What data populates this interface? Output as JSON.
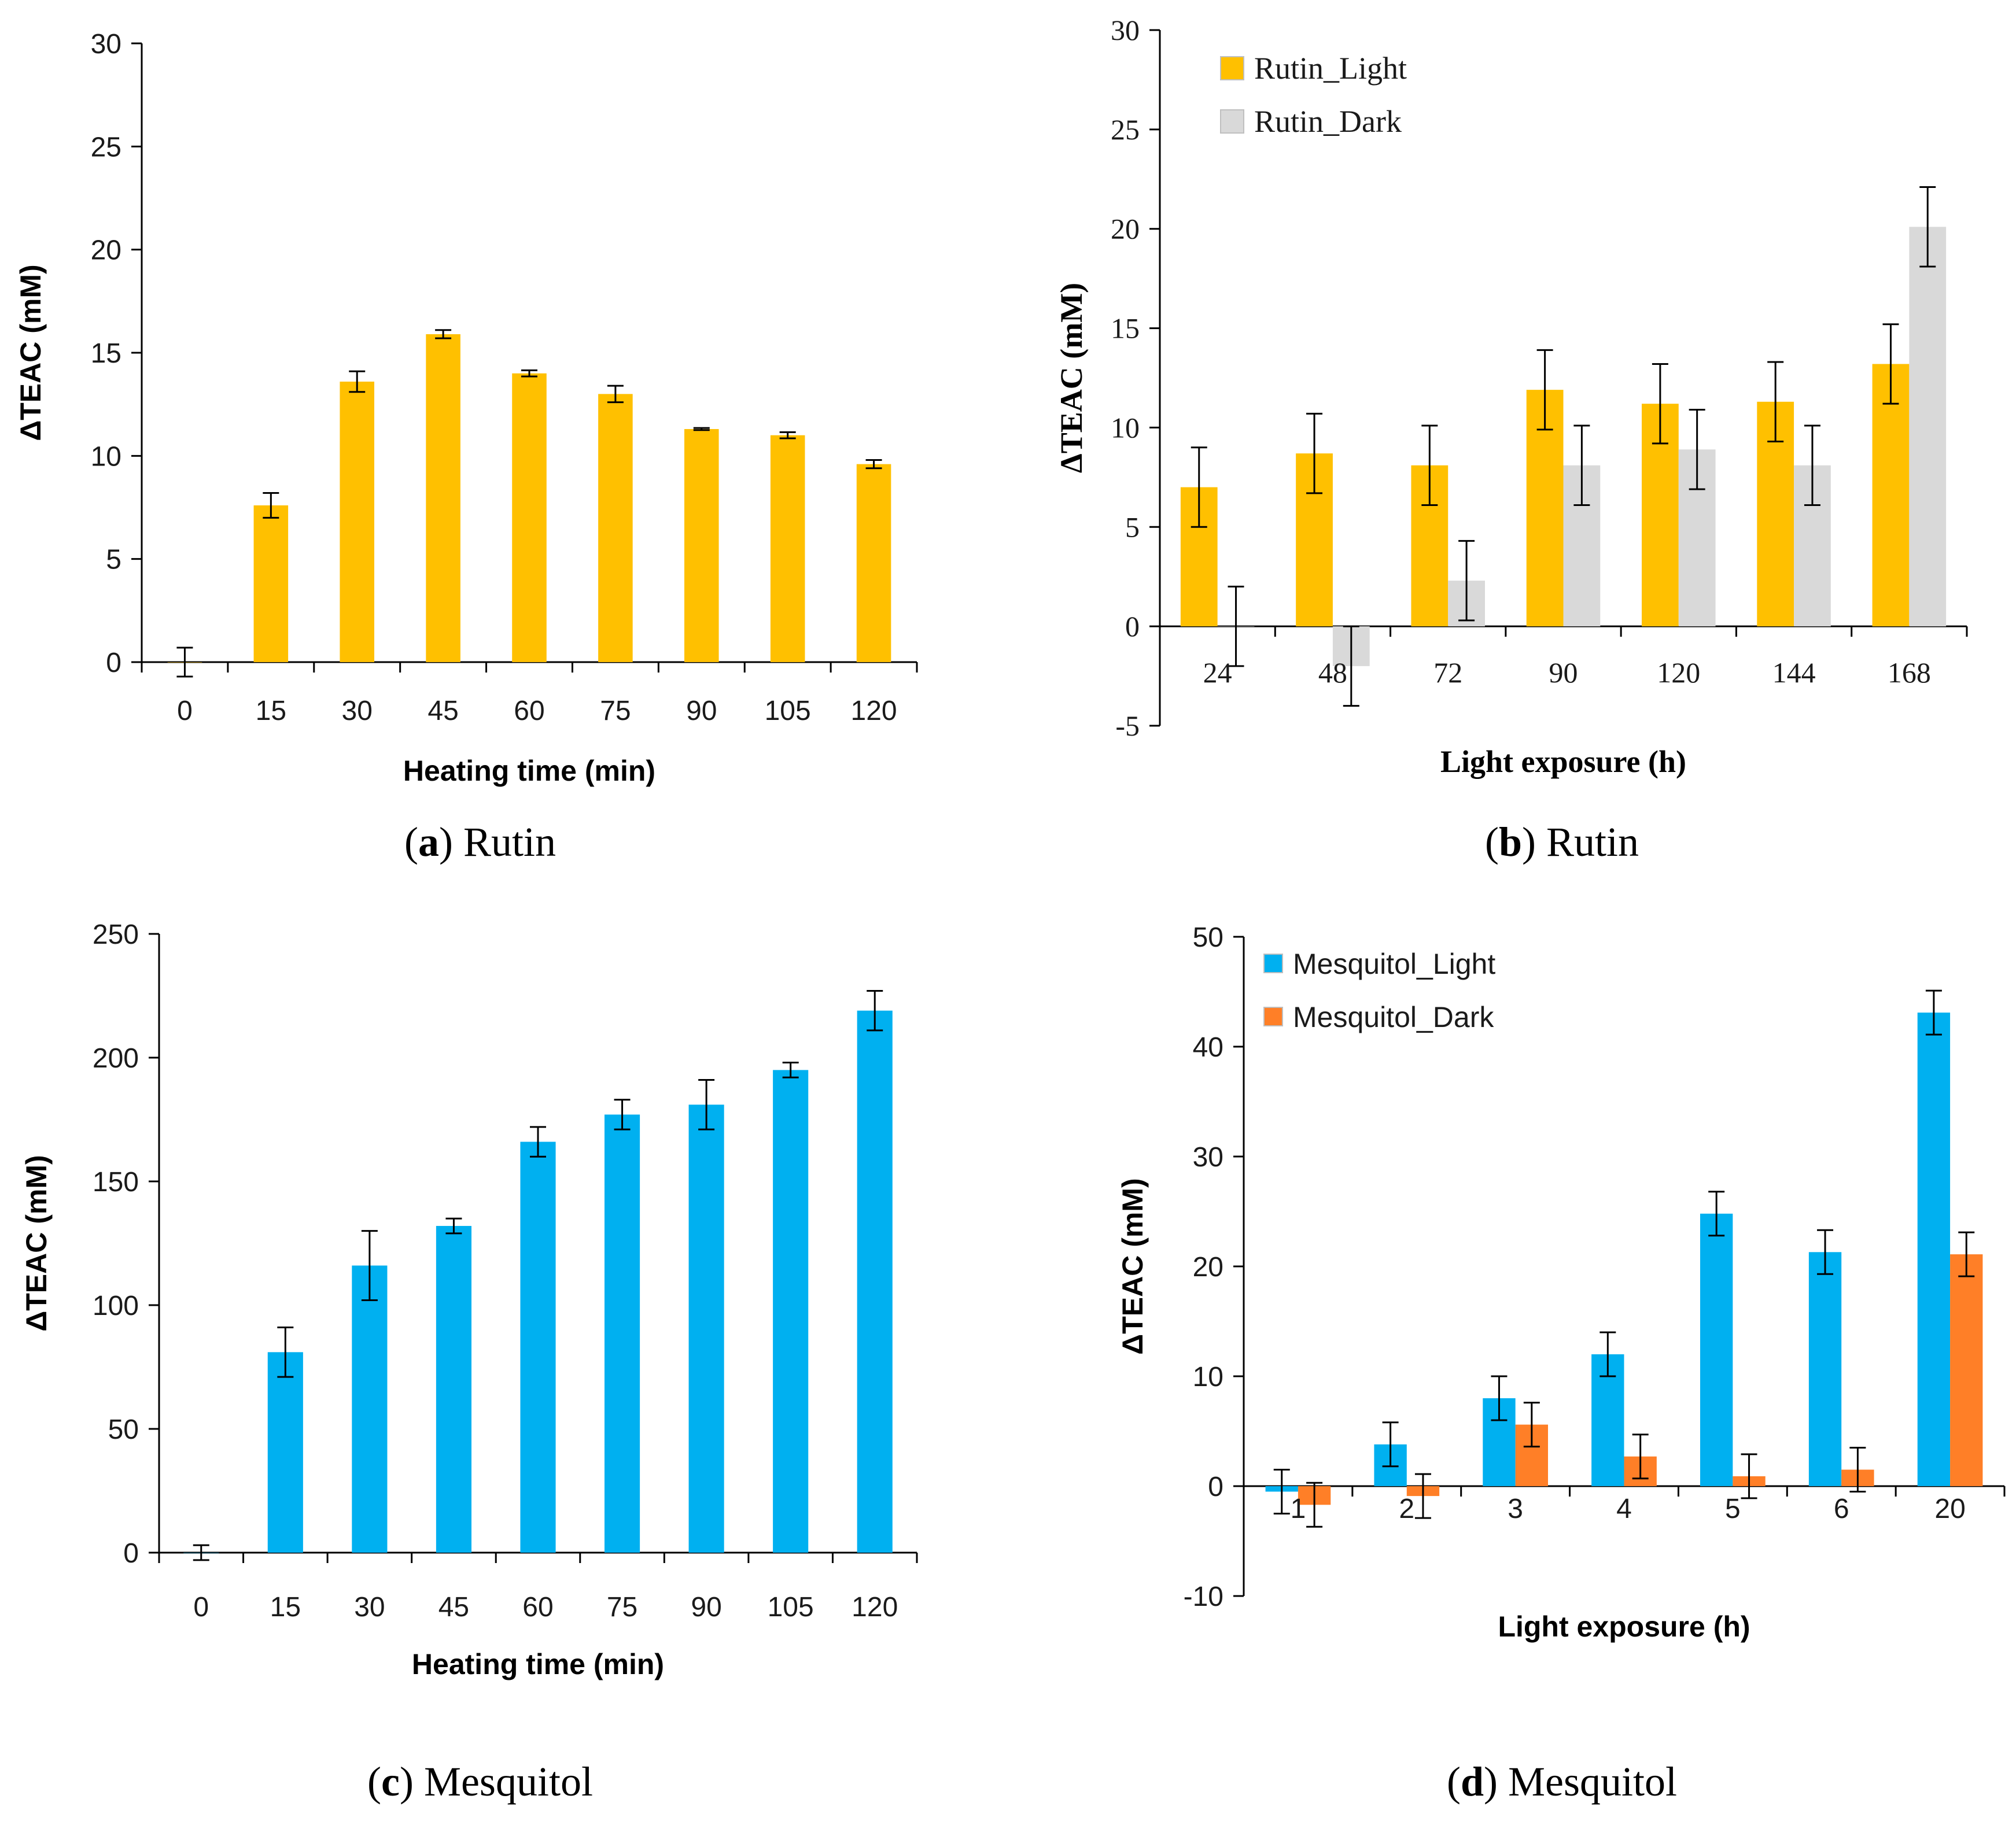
{
  "colors": {
    "rutin_light": "#ffc000",
    "rutin_dark": "#d9d9d9",
    "mesquitol_light": "#00b0f0",
    "mesquitol_dark": "#ff7f27",
    "axis": "#000000",
    "text": "#1a1a1a"
  },
  "chart_data": [
    {
      "id": "a",
      "type": "bar",
      "title": "",
      "caption_letter": "a",
      "caption_text": "Rutin",
      "xlabel": "Heating time (min)",
      "ylabel": "ΔTEAC (mM)",
      "categories": [
        "0",
        "15",
        "30",
        "45",
        "60",
        "75",
        "90",
        "105",
        "120"
      ],
      "ylim": [
        0,
        30
      ],
      "yticks": [
        0,
        5,
        10,
        15,
        20,
        25,
        30
      ],
      "series": [
        {
          "name": "Rutin",
          "color_key": "rutin_light",
          "values": [
            0,
            7.6,
            13.6,
            15.9,
            14.0,
            13.0,
            11.3,
            11.0,
            9.6
          ],
          "errors": [
            0.7,
            0.6,
            0.5,
            0.2,
            0.15,
            0.4,
            0.05,
            0.15,
            0.2
          ]
        }
      ],
      "legend": false,
      "font": "sans"
    },
    {
      "id": "b",
      "type": "bar",
      "title": "",
      "caption_letter": "b",
      "caption_text": "Rutin",
      "xlabel": "Light exposure (h)",
      "ylabel": "ΔTEAC (mM)",
      "categories": [
        "24",
        "48",
        "72",
        "90",
        "120",
        "144",
        "168"
      ],
      "ylim": [
        -5,
        30
      ],
      "yticks": [
        -5,
        0,
        5,
        10,
        15,
        20,
        25,
        30
      ],
      "series": [
        {
          "name": "Rutin_Light",
          "color_key": "rutin_light",
          "values": [
            7.0,
            8.7,
            8.1,
            11.9,
            11.2,
            11.3,
            13.2
          ],
          "errors": [
            2.0,
            2.0,
            2.0,
            2.0,
            2.0,
            2.0,
            2.0
          ]
        },
        {
          "name": "Rutin_Dark",
          "color_key": "rutin_dark",
          "values": [
            0,
            -2.0,
            2.3,
            8.1,
            8.9,
            8.1,
            20.1
          ],
          "errors": [
            2.0,
            2.0,
            2.0,
            2.0,
            2.0,
            2.0,
            2.0
          ]
        }
      ],
      "legend": true,
      "legend_position": "top-left",
      "font": "serif"
    },
    {
      "id": "c",
      "type": "bar",
      "title": "",
      "caption_letter": "c",
      "caption_text": "Mesquitol",
      "xlabel": "Heating time (min)",
      "ylabel": "ΔTEAC (mM)",
      "categories": [
        "0",
        "15",
        "30",
        "45",
        "60",
        "75",
        "90",
        "105",
        "120"
      ],
      "ylim": [
        0,
        250
      ],
      "yticks": [
        0,
        50,
        100,
        150,
        200,
        250
      ],
      "series": [
        {
          "name": "Mesquitol",
          "color_key": "mesquitol_light",
          "values": [
            0,
            81,
            116,
            132,
            166,
            177,
            181,
            195,
            219
          ],
          "errors": [
            3,
            10,
            14,
            3,
            6,
            6,
            10,
            3,
            8
          ]
        }
      ],
      "legend": false,
      "font": "sans"
    },
    {
      "id": "d",
      "type": "bar",
      "title": "",
      "caption_letter": "d",
      "caption_text": "Mesquitol",
      "xlabel": "Light exposure (h)",
      "ylabel": "ΔTEAC (mM)",
      "categories": [
        "1",
        "2",
        "3",
        "4",
        "5",
        "6",
        "20"
      ],
      "ylim": [
        -10,
        50
      ],
      "yticks": [
        -10,
        0,
        10,
        20,
        30,
        40,
        50
      ],
      "series": [
        {
          "name": "Mesquitol_Light",
          "color_key": "mesquitol_light",
          "values": [
            -0.5,
            3.8,
            8.0,
            12.0,
            24.8,
            21.3,
            43.1
          ],
          "errors": [
            2.0,
            2.0,
            2.0,
            2.0,
            2.0,
            2.0,
            2.0
          ]
        },
        {
          "name": "Mesquitol_Dark",
          "color_key": "mesquitol_dark",
          "values": [
            -1.7,
            -0.9,
            5.6,
            2.7,
            0.9,
            1.5,
            21.1
          ],
          "errors": [
            2.0,
            2.0,
            2.0,
            2.0,
            2.0,
            2.0,
            2.0
          ]
        }
      ],
      "legend": true,
      "legend_position": "top-left",
      "font": "sans"
    }
  ]
}
